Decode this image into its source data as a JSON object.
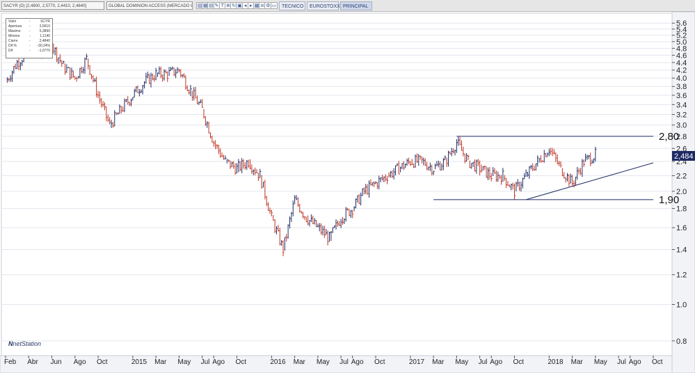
{
  "toolbar": {
    "symbol_label": "SACYR (D) [2,4800, 2,5770, 2,4410, 2,4840]",
    "index_label": "GLOBAL DOMINION ACCESS (MERCADO CO",
    "icons": [
      "chart-icon",
      "grid-icon",
      "table-icon",
      "tool-icon",
      "text-icon",
      "zoom-icon",
      "refresh-icon",
      "lock-icon",
      "back-icon",
      "forward-icon",
      "grid2-icon",
      "list-icon",
      "settings-icon",
      "print-icon"
    ],
    "tabs": [
      "TECNICO",
      "EUROSTOXX",
      "PRINCIPAL"
    ],
    "active_tab": "PRINCIPAL"
  },
  "info_box": {
    "rows": [
      {
        "key": "Valor",
        "val": "SCYR"
      },
      {
        "key": "Apertura",
        "val": "3,5610"
      },
      {
        "key": "Máximo",
        "val": "5,3890"
      },
      {
        "key": "Mínimo",
        "val": "1,1140"
      },
      {
        "key": "Cierre",
        "val": "2,4840"
      },
      {
        "key": "Dif %",
        "val": "-30,24%"
      },
      {
        "key": "Dif",
        "val": "-1,0770"
      }
    ]
  },
  "logo": {
    "mark": "N",
    "text": "netStation"
  },
  "colors": {
    "bar_up": "#1d2a63",
    "bar_down": "#c0311f",
    "line": "#1d2a63",
    "price_tag": "#1d2a63",
    "grid": "#e3e6ee"
  },
  "chart_data": {
    "type": "line",
    "scale": "log",
    "ylim": [
      0.75,
      5.8
    ],
    "yticks": [
      5.6,
      5.4,
      5.2,
      5.0,
      4.8,
      4.6,
      4.4,
      4.2,
      4.0,
      3.8,
      3.6,
      3.4,
      3.2,
      3.0,
      2.8,
      2.6,
      2.4,
      2.2,
      2.0,
      1.8,
      1.6,
      1.4,
      1.2,
      1.0,
      0.8
    ],
    "ytick_labels": [
      "5.6",
      "5.4",
      "5.2",
      "5.0",
      "4.8",
      "4.6",
      "4.4",
      "4.2",
      "4.0",
      "3.8",
      "3.6",
      "3.4",
      "3.2",
      "3.0",
      "2.8",
      "2.6",
      "2.4",
      "2.2",
      "2.0",
      "1.8",
      "1.6",
      "1.4",
      "1.2",
      "1.0",
      "0.8"
    ],
    "xlim": [
      "2014-02",
      "2018-10"
    ],
    "xticks": [
      {
        "date": "2014-02",
        "label": "Feb"
      },
      {
        "date": "2014-04",
        "label": "Abr"
      },
      {
        "date": "2014-06",
        "label": "Jun"
      },
      {
        "date": "2014-08",
        "label": "Ago"
      },
      {
        "date": "2014-10",
        "label": "Oct"
      },
      {
        "date": "2015-01",
        "label": "2015"
      },
      {
        "date": "2015-03",
        "label": "Mar"
      },
      {
        "date": "2015-05",
        "label": "May"
      },
      {
        "date": "2015-07",
        "label": "Jul"
      },
      {
        "date": "2015-08",
        "label": "Ago"
      },
      {
        "date": "2015-10",
        "label": "Oct"
      },
      {
        "date": "2016-01",
        "label": "2016"
      },
      {
        "date": "2016-03",
        "label": "Mar"
      },
      {
        "date": "2016-05",
        "label": "May"
      },
      {
        "date": "2016-07",
        "label": "Jul"
      },
      {
        "date": "2016-08",
        "label": "Ago"
      },
      {
        "date": "2016-10",
        "label": "Oct"
      },
      {
        "date": "2017-01",
        "label": "2017"
      },
      {
        "date": "2017-03",
        "label": "Mar"
      },
      {
        "date": "2017-05",
        "label": "May"
      },
      {
        "date": "2017-07",
        "label": "Jul"
      },
      {
        "date": "2017-08",
        "label": "Ago"
      },
      {
        "date": "2017-10",
        "label": "Oct"
      },
      {
        "date": "2018-01",
        "label": "2018"
      },
      {
        "date": "2018-03",
        "label": "Mar"
      },
      {
        "date": "2018-05",
        "label": "May"
      },
      {
        "date": "2018-07",
        "label": "Jul"
      },
      {
        "date": "2018-08",
        "label": "Ago"
      },
      {
        "date": "2018-10",
        "label": "Oct"
      }
    ],
    "series": [
      {
        "style": "ohlc",
        "x": [
          "2014-02",
          "2014-03",
          "2014-04",
          "2014-05",
          "2014-06",
          "2014-07",
          "2014-08",
          "2014-09",
          "2014-10",
          "2014-11",
          "2014-12",
          "2015-01",
          "2015-02",
          "2015-03",
          "2015-04",
          "2015-05",
          "2015-06",
          "2015-07",
          "2015-08",
          "2015-09",
          "2015-10",
          "2015-11",
          "2015-12",
          "2016-01",
          "2016-02",
          "2016-03",
          "2016-04",
          "2016-05",
          "2016-06",
          "2016-07",
          "2016-08",
          "2016-09",
          "2016-10",
          "2016-11",
          "2016-12",
          "2017-01",
          "2017-02",
          "2017-03",
          "2017-04",
          "2017-05",
          "2017-06",
          "2017-07",
          "2017-08",
          "2017-09",
          "2017-10",
          "2017-11",
          "2017-12",
          "2018-01",
          "2018-02",
          "2018-03",
          "2018-04",
          "2018-05"
        ],
        "y": [
          3.9,
          4.4,
          4.7,
          4.6,
          4.9,
          4.3,
          4.0,
          4.5,
          3.6,
          3.0,
          3.3,
          3.6,
          3.9,
          4.1,
          4.1,
          4.2,
          3.7,
          3.3,
          2.7,
          2.4,
          2.3,
          2.4,
          2.2,
          1.7,
          1.4,
          1.9,
          1.7,
          1.6,
          1.5,
          1.7,
          1.8,
          2.0,
          2.1,
          2.2,
          2.3,
          2.4,
          2.4,
          2.3,
          2.4,
          2.7,
          2.4,
          2.3,
          2.2,
          2.2,
          2.0,
          2.2,
          2.4,
          2.6,
          2.3,
          2.1,
          2.4,
          2.5
        ]
      }
    ],
    "annotations": [
      {
        "type": "hline",
        "from": "2017-05",
        "to": "2018-10",
        "value": 2.8,
        "label": "2,80"
      },
      {
        "type": "hline",
        "from": "2017-03",
        "to": "2018-10",
        "value": 1.9,
        "label": "1,90"
      },
      {
        "type": "trendline",
        "from": {
          "x": "2017-11",
          "y": 1.9
        },
        "to": {
          "x": "2018-10",
          "y": 2.38
        }
      }
    ],
    "last_price_label": "2,484",
    "last_price": 2.484
  }
}
